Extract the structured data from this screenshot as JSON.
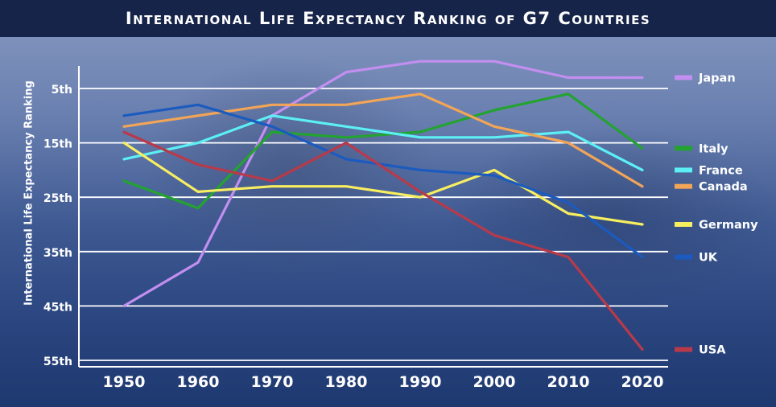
{
  "chart_data": {
    "type": "line",
    "title": "International Life Expectancy Ranking of G7 Countries",
    "ylabel": "International Life Expectancy Ranking",
    "xlabel": "",
    "x": [
      1950,
      1960,
      1970,
      1980,
      1990,
      2000,
      2010,
      2020
    ],
    "ylim": [
      57,
      1
    ],
    "y_inverted": true,
    "y_ticks": [
      {
        "value": 5,
        "label": "5th"
      },
      {
        "value": 15,
        "label": "15th"
      },
      {
        "value": 25,
        "label": "25th"
      },
      {
        "value": 35,
        "label": "35th"
      },
      {
        "value": 45,
        "label": "45th"
      },
      {
        "value": 55,
        "label": "55th"
      }
    ],
    "grid": true,
    "legend_placement": "right, labels at line ends",
    "series": [
      {
        "name": "Japan",
        "color": "#c28ff0",
        "values": [
          45,
          37,
          10,
          2,
          0,
          0,
          3,
          3
        ]
      },
      {
        "name": "Italy",
        "color": "#23a330",
        "values": [
          22,
          27,
          13,
          14,
          13,
          9,
          6,
          16
        ]
      },
      {
        "name": "France",
        "color": "#5cf0f5",
        "values": [
          18,
          15,
          10,
          12,
          14,
          14,
          13,
          20
        ]
      },
      {
        "name": "Canada",
        "color": "#f2a556",
        "values": [
          12,
          10,
          8,
          8,
          6,
          12,
          15,
          23
        ]
      },
      {
        "name": "Germany",
        "color": "#f7ee60",
        "values": [
          15,
          24,
          23,
          23,
          25,
          20,
          28,
          30
        ]
      },
      {
        "name": "UK",
        "color": "#1b5bbf",
        "values": [
          10,
          8,
          12,
          18,
          20,
          21,
          26,
          36
        ]
      },
      {
        "name": "USA",
        "color": "#b83a4a",
        "values": [
          13,
          19,
          22,
          15,
          24,
          32,
          36,
          53
        ]
      }
    ]
  }
}
